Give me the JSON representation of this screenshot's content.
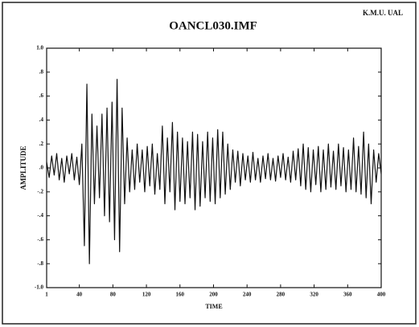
{
  "chart_data": {
    "type": "line",
    "title": "OANCL030.IMF",
    "corner_label": "K.M.U. UAL",
    "x_label": "TIME",
    "y_label": "AMPLITUDE",
    "color": "#111111",
    "xlim": [
      1,
      400
    ],
    "ylim": [
      -1.0,
      1.0
    ],
    "xticks": [
      1,
      40,
      80,
      120,
      160,
      200,
      240,
      280,
      320,
      360,
      400
    ],
    "yticks": [
      {
        "value": 1.0,
        "label": "1.0"
      },
      {
        "value": 0.8,
        "label": ".8"
      },
      {
        "value": 0.6,
        "label": ".6"
      },
      {
        "value": 0.4,
        "label": ".4"
      },
      {
        "value": 0.2,
        "label": ".2"
      },
      {
        "value": 0.0,
        "label": ".0"
      },
      {
        "value": -0.2,
        "label": "-.2"
      },
      {
        "value": -0.4,
        "label": "-.4"
      },
      {
        "value": -0.6,
        "label": "-.6"
      },
      {
        "value": -0.8,
        "label": "-.8"
      },
      {
        "value": -1.0,
        "label": "-1.0"
      }
    ],
    "x": [
      1,
      4,
      7,
      10,
      13,
      16,
      19,
      22,
      25,
      28,
      31,
      34,
      37,
      40,
      43,
      46,
      49,
      52,
      55,
      58,
      61,
      64,
      67,
      70,
      73,
      76,
      79,
      82,
      85,
      88,
      91,
      94,
      97,
      100,
      103,
      106,
      109,
      112,
      115,
      118,
      121,
      124,
      127,
      130,
      133,
      136,
      139,
      142,
      145,
      148,
      151,
      154,
      157,
      160,
      163,
      166,
      169,
      172,
      175,
      178,
      181,
      184,
      187,
      190,
      193,
      196,
      199,
      202,
      205,
      208,
      211,
      214,
      217,
      220,
      223,
      226,
      229,
      232,
      235,
      238,
      241,
      244,
      247,
      250,
      253,
      256,
      259,
      262,
      265,
      268,
      271,
      274,
      277,
      280,
      283,
      286,
      289,
      292,
      295,
      298,
      301,
      304,
      307,
      310,
      313,
      316,
      319,
      322,
      325,
      328,
      331,
      334,
      337,
      340,
      343,
      346,
      349,
      352,
      355,
      358,
      361,
      364,
      367,
      370,
      373,
      376,
      379,
      382,
      385,
      388,
      391,
      394,
      397,
      400
    ],
    "values": [
      0.05,
      -0.08,
      0.1,
      -0.06,
      0.12,
      -0.1,
      0.08,
      -0.12,
      0.1,
      -0.05,
      0.12,
      -0.1,
      0.09,
      -0.14,
      0.2,
      -0.65,
      0.7,
      -0.8,
      0.45,
      -0.3,
      0.35,
      -0.25,
      0.45,
      -0.4,
      0.5,
      -0.45,
      0.55,
      -0.6,
      0.74,
      -0.7,
      0.5,
      -0.3,
      0.25,
      -0.2,
      0.15,
      -0.18,
      0.2,
      -0.12,
      0.15,
      -0.2,
      0.18,
      -0.15,
      0.2,
      -0.22,
      0.12,
      -0.18,
      0.35,
      -0.3,
      0.25,
      -0.2,
      0.38,
      -0.35,
      0.3,
      -0.28,
      0.25,
      -0.3,
      0.22,
      -0.25,
      0.3,
      -0.35,
      0.28,
      -0.32,
      0.22,
      -0.25,
      0.3,
      -0.28,
      0.25,
      -0.3,
      0.32,
      -0.25,
      0.3,
      -0.22,
      0.2,
      -0.18,
      0.15,
      -0.12,
      0.14,
      -0.15,
      0.12,
      -0.1,
      0.1,
      -0.12,
      0.13,
      -0.1,
      0.08,
      -0.12,
      0.1,
      -0.09,
      0.12,
      -0.1,
      0.08,
      -0.11,
      0.1,
      -0.08,
      0.12,
      -0.1,
      0.09,
      -0.12,
      0.14,
      -0.1,
      0.16,
      -0.15,
      0.2,
      -0.18,
      0.17,
      -0.2,
      0.15,
      -0.14,
      0.18,
      -0.2,
      0.15,
      -0.18,
      0.2,
      -0.16,
      0.14,
      -0.18,
      0.2,
      -0.15,
      0.17,
      -0.2,
      0.15,
      -0.18,
      0.25,
      -0.2,
      0.18,
      -0.22,
      0.3,
      -0.25,
      0.2,
      -0.3,
      0.15,
      -0.12,
      0.12,
      -0.05
    ]
  }
}
